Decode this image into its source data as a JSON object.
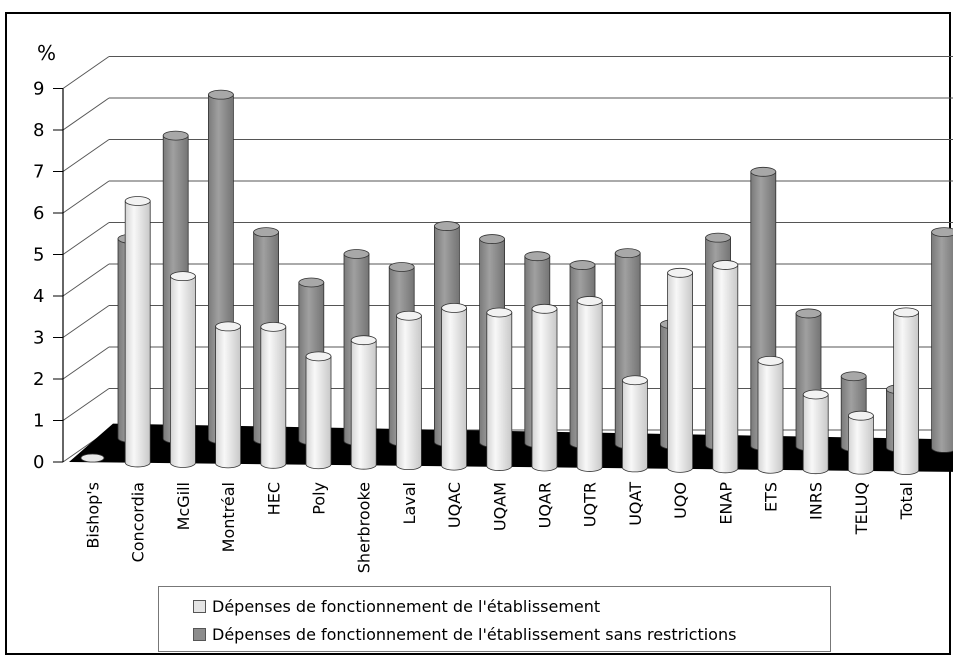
{
  "chart_data": {
    "type": "bar",
    "ylabel": "%",
    "ylim": [
      0,
      9
    ],
    "yticks": [
      "0",
      "1",
      "2",
      "3",
      "4",
      "5",
      "6",
      "7",
      "8",
      "9"
    ],
    "grid": true,
    "legend_position": "bottom",
    "categories": [
      "Bishop's",
      "Concordia",
      "McGill",
      "Montréal",
      "HEC",
      "Poly",
      "Sherbrooke",
      "Laval",
      "UQAC",
      "UQAM",
      "UQAR",
      "UQTR",
      "UQAT",
      "UQO",
      "ENAP",
      "ETS",
      "INRS",
      "TELUQ",
      "Total"
    ],
    "series": [
      {
        "name": "Dépenses de fonctionnement de l'établissement",
        "color": "#e8e8e8",
        "values": [
          0.05,
          6.3,
          4.5,
          3.3,
          3.3,
          2.6,
          3.0,
          3.6,
          3.8,
          3.7,
          3.8,
          4.0,
          2.1,
          4.7,
          4.9,
          2.6,
          1.8,
          1.3,
          3.8
        ]
      },
      {
        "name": "Dépenses de fonctionnement de l'établissement sans restrictions",
        "color": "#8c8c8c",
        "values": [
          4.8,
          7.3,
          8.3,
          5.0,
          3.8,
          4.5,
          4.2,
          5.2,
          4.9,
          4.5,
          4.3,
          4.6,
          2.9,
          5.0,
          6.6,
          3.2,
          1.7,
          1.4,
          5.2
        ]
      }
    ]
  }
}
